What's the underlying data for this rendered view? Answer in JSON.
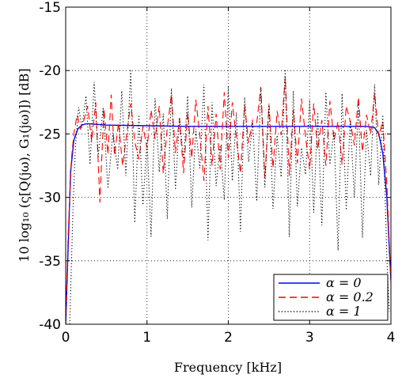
{
  "chart_data": {
    "type": "line",
    "xlabel": "Frequency [kHz]",
    "ylabel": "10 log₁₀ (ς[Q(jω), G₁(jω)]) [dB]",
    "xlim": [
      0,
      4
    ],
    "ylim": [
      -40,
      -15
    ],
    "xticks": [
      "0",
      "1",
      "2",
      "3",
      "4"
    ],
    "yticks": [
      "-40",
      "-35",
      "-30",
      "-25",
      "-20",
      "-15"
    ],
    "grid": true,
    "legend_position": "bottom-right",
    "series": [
      {
        "name": "α = 0",
        "color": "#0000ff",
        "style": "solid",
        "x": [
          0,
          0.03,
          0.06,
          0.1,
          0.15,
          0.2,
          0.25,
          0.3,
          0.5,
          1.0,
          1.5,
          2.0,
          2.5,
          3.0,
          3.5,
          3.7,
          3.8,
          3.85,
          3.9,
          3.95,
          3.98,
          4.0
        ],
        "y": [
          -40,
          -34,
          -28,
          -25.5,
          -24.6,
          -24.3,
          -24.2,
          -24.2,
          -24.3,
          -24.35,
          -24.4,
          -24.4,
          -24.4,
          -24.4,
          -24.4,
          -24.4,
          -24.5,
          -25.0,
          -26.5,
          -30,
          -34,
          -36.5
        ]
      },
      {
        "name": "α = 0.2",
        "color": "#ff0000",
        "style": "dashed",
        "x": [
          0,
          0.03,
          0.07,
          0.1,
          0.14,
          0.18,
          0.22,
          0.27,
          0.32,
          0.37,
          0.42,
          0.47,
          0.52,
          0.56,
          0.6,
          0.65,
          0.7,
          0.75,
          0.8,
          0.85,
          0.9,
          0.95,
          1.0,
          1.05,
          1.1,
          1.15,
          1.2,
          1.25,
          1.3,
          1.35,
          1.4,
          1.45,
          1.5,
          1.55,
          1.6,
          1.65,
          1.7,
          1.75,
          1.8,
          1.85,
          1.9,
          1.95,
          2.0,
          2.05,
          2.1,
          2.15,
          2.2,
          2.25,
          2.3,
          2.35,
          2.4,
          2.45,
          2.5,
          2.55,
          2.6,
          2.65,
          2.7,
          2.75,
          2.8,
          2.85,
          2.9,
          2.95,
          3.0,
          3.05,
          3.1,
          3.15,
          3.2,
          3.25,
          3.3,
          3.35,
          3.4,
          3.45,
          3.5,
          3.55,
          3.6,
          3.65,
          3.7,
          3.75,
          3.8,
          3.85,
          3.9,
          3.95,
          4.0
        ],
        "y": [
          -40,
          -33,
          -27,
          -25,
          -23.5,
          -24.6,
          -24.0,
          -22.8,
          -25.6,
          -22.5,
          -30.4,
          -23.0,
          -26.6,
          -21.9,
          -26.7,
          -24.1,
          -27.5,
          -25.0,
          -22.6,
          -25.6,
          -27.0,
          -24.4,
          -26.1,
          -23.1,
          -25.4,
          -22.8,
          -28.1,
          -24.5,
          -21.9,
          -26.5,
          -23.8,
          -28.1,
          -23.3,
          -26.9,
          -22.3,
          -25.1,
          -28.7,
          -22.8,
          -27.5,
          -23.4,
          -27.8,
          -21.7,
          -26.9,
          -22.5,
          -25.4,
          -28.1,
          -22.7,
          -25.7,
          -23.9,
          -24.1,
          -21.3,
          -28.5,
          -22.7,
          -27.7,
          -23.2,
          -25.1,
          -20.5,
          -28.3,
          -23.1,
          -27.3,
          -22.2,
          -25.2,
          -27.8,
          -22.6,
          -26.2,
          -23.9,
          -27.5,
          -22.4,
          -25.5,
          -24.0,
          -27.4,
          -22.8,
          -24.0,
          -25.9,
          -22.1,
          -26.4,
          -23.5,
          -25.0,
          -21.8,
          -25.2,
          -24.0,
          -29.0,
          -36.7
        ]
      },
      {
        "name": "α = 1",
        "color": "#000000",
        "style": "dotted",
        "x": [
          0.05,
          0.09,
          0.12,
          0.16,
          0.2,
          0.25,
          0.3,
          0.35,
          0.4,
          0.46,
          0.52,
          0.58,
          0.64,
          0.69,
          0.74,
          0.8,
          0.85,
          0.9,
          0.95,
          1.0,
          1.05,
          1.1,
          1.15,
          1.2,
          1.25,
          1.3,
          1.35,
          1.4,
          1.45,
          1.5,
          1.55,
          1.6,
          1.65,
          1.7,
          1.75,
          1.8,
          1.85,
          1.9,
          1.95,
          2.0,
          2.05,
          2.1,
          2.15,
          2.2,
          2.25,
          2.3,
          2.35,
          2.4,
          2.45,
          2.5,
          2.55,
          2.6,
          2.65,
          2.7,
          2.75,
          2.8,
          2.85,
          2.9,
          2.95,
          3.0,
          3.05,
          3.1,
          3.15,
          3.2,
          3.25,
          3.3,
          3.35,
          3.4,
          3.45,
          3.5,
          3.55,
          3.6,
          3.65,
          3.7,
          3.75,
          3.8,
          3.85,
          3.9,
          3.95,
          3.98
        ],
        "y": [
          -40,
          -31,
          -26,
          -22.9,
          -24.5,
          -22.0,
          -27.4,
          -20.9,
          -26.8,
          -22.9,
          -29.3,
          -24.9,
          -27.8,
          -21.6,
          -28.3,
          -19.9,
          -32.0,
          -23.5,
          -30.6,
          -25.5,
          -33.1,
          -22.2,
          -28.0,
          -23.4,
          -31.7,
          -21.4,
          -29.4,
          -23.7,
          -27.1,
          -22.0,
          -30.8,
          -24.6,
          -27.7,
          -21.1,
          -33.4,
          -22.5,
          -29.1,
          -25.9,
          -30.2,
          -21.2,
          -28.7,
          -23.3,
          -32.7,
          -22.1,
          -27.2,
          -24.1,
          -30.3,
          -21.4,
          -29.2,
          -22.6,
          -30.9,
          -25.1,
          -28.4,
          -19.9,
          -33.1,
          -21.6,
          -30.7,
          -26.1,
          -28.2,
          -22.3,
          -31.2,
          -23.3,
          -32.2,
          -21.7,
          -27.4,
          -24.8,
          -34.2,
          -21.8,
          -31.0,
          -23.9,
          -30.0,
          -22.6,
          -33.2,
          -24.7,
          -28.3,
          -21.1,
          -29.0,
          -23.5,
          -34.8,
          -39.0
        ]
      }
    ]
  }
}
